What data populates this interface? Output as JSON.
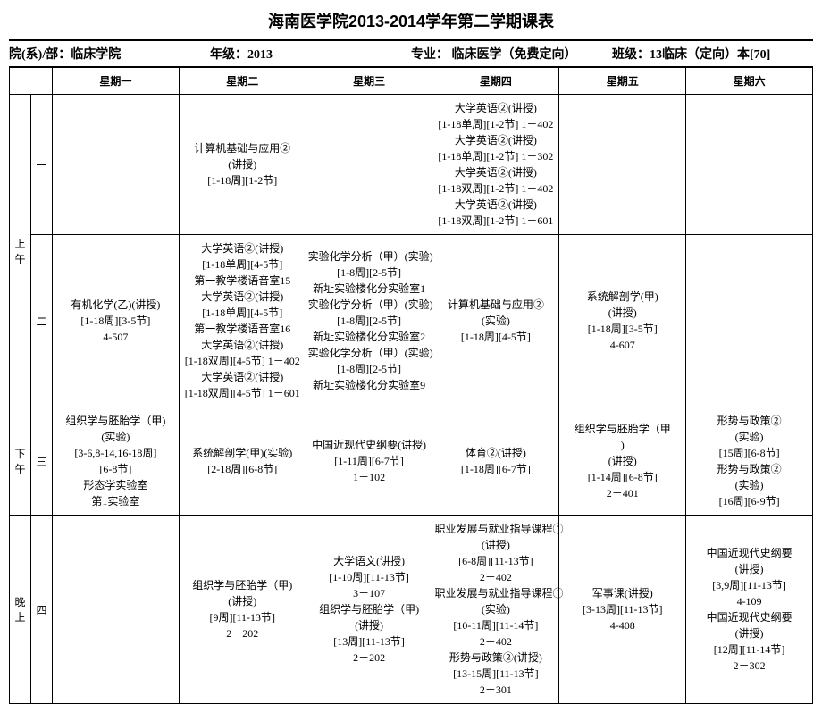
{
  "title": "海南医学院2013-2014学年第二学期课表",
  "meta": {
    "dept_label": "院(系)/部：",
    "dept": "临床学院",
    "grade_label": "年级：",
    "grade": "2013",
    "major_label": "专业：",
    "major": " 临床医学（免费定向）",
    "class_label": "班级：",
    "class": "13临床（定向）本[70]"
  },
  "days": [
    "星期一",
    "星期二",
    "星期三",
    "星期四",
    "星期五",
    "星期六"
  ],
  "blocks": [
    {
      "side": "上午",
      "rows": [
        {
          "num": "一",
          "cells": [
            [],
            [
              "计算机基础与应用②",
              "(讲授)",
              "[1-18周][1-2节]"
            ],
            [],
            [
              "大学英语②(讲授)",
              "[1-18单周][1-2节] 1－402",
              "大学英语②(讲授)",
              "[1-18单周][1-2节] 1－302",
              "大学英语②(讲授)",
              "[1-18双周][1-2节] 1－402",
              "大学英语②(讲授)",
              "[1-18双周][1-2节] 1－601"
            ],
            [],
            []
          ]
        },
        {
          "num": "二",
          "cells": [
            [
              "有机化学(乙)(讲授)",
              "[1-18周][3-5节]",
              "4-507"
            ],
            [
              "大学英语②(讲授)",
              "[1-18单周][4-5节]",
              "第一教学楼语音室15",
              "大学英语②(讲授)",
              "[1-18单周][4-5节]",
              "第一教学楼语音室16",
              "大学英语②(讲授)",
              "[1-18双周][4-5节] 1－402",
              "大学英语②(讲授)",
              "[1-18双周][4-5节] 1－601"
            ],
            [
              "实验化学分析（甲）(实验)",
              "[1-8周][2-5节]",
              "新址实验楼化分实验室1",
              "实验化学分析（甲）(实验)",
              "[1-8周][2-5节]",
              "新址实验楼化分实验室2",
              "实验化学分析（甲）(实验)",
              "[1-8周][2-5节]",
              "新址实验楼化分实验室9"
            ],
            [
              "计算机基础与应用②",
              "(实验)",
              "[1-18周][4-5节]"
            ],
            [
              "系统解剖学(甲)",
              "(讲授)",
              "[1-18周][3-5节]",
              "4-607"
            ],
            []
          ]
        }
      ]
    },
    {
      "side": "下午",
      "rows": [
        {
          "num": "三",
          "cells": [
            [
              "组织学与胚胎学（甲)",
              "(实验)",
              "[3-6,8-14,16-18周]",
              "[6-8节]",
              "形态学实验室",
              "第1实验室"
            ],
            [
              "系统解剖学(甲)(实验)",
              "[2-18周][6-8节]"
            ],
            [
              "中国近现代史纲要(讲授)",
              "[1-11周][6-7节]",
              "1－102"
            ],
            [
              "体育②(讲授)",
              "[1-18周][6-7节]"
            ],
            [
              "组织学与胚胎学（甲",
              ")",
              "(讲授)",
              "[1-14周][6-8节]",
              "2－401"
            ],
            [
              "形势与政策②",
              "(实验)",
              "[15周][6-8节]",
              "形势与政策②",
              "(实验)",
              "[16周][6-9节]"
            ]
          ]
        }
      ]
    },
    {
      "side": "晚上",
      "rows": [
        {
          "num": "四",
          "cells": [
            [],
            [
              "组织学与胚胎学（甲)",
              "(讲授)",
              "[9周][11-13节]",
              "2－202"
            ],
            [
              "大学语文(讲授)",
              "[1-10周][11-13节]",
              "3－107",
              "组织学与胚胎学（甲)",
              "(讲授)",
              "[13周][11-13节]",
              "2－202"
            ],
            [
              "职业发展与就业指导课程①",
              "(讲授)",
              "[6-8周][11-13节]",
              "2－402",
              "职业发展与就业指导课程①",
              "(实验)",
              "[10-11周][11-14节]",
              "2－402",
              "形势与政策②(讲授)",
              "[13-15周][11-13节]",
              "2－301"
            ],
            [
              "军事课(讲授)",
              "[3-13周][11-13节]",
              "4-408"
            ],
            [
              "中国近现代史纲要",
              "(讲授)",
              "[3,9周][11-13节]",
              "4-109",
              "中国近现代史纲要",
              "(讲授)",
              "[12周][11-14节]",
              "2－302"
            ]
          ]
        }
      ]
    }
  ]
}
